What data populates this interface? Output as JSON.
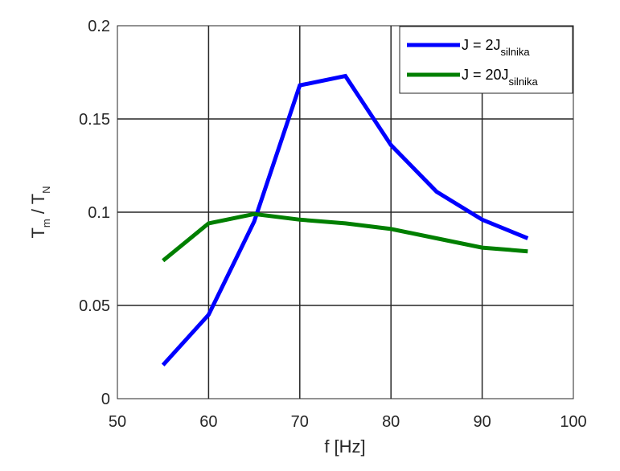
{
  "chart_data": {
    "type": "line",
    "xlabel": "f [Hz]",
    "ylabel": {
      "main": "T",
      "sub1": "m",
      "sep": " / T",
      "sub2": "N"
    },
    "xlim": [
      50,
      100
    ],
    "ylim": [
      0,
      0.2
    ],
    "xticks": [
      50,
      60,
      70,
      80,
      90,
      100
    ],
    "yticks": [
      0,
      0.05,
      0.1,
      0.15,
      0.2
    ],
    "xtick_labels": [
      "50",
      "60",
      "70",
      "80",
      "90",
      "100"
    ],
    "ytick_labels": [
      "0",
      "0.05",
      "0.1",
      "0.15",
      "0.2"
    ],
    "grid": true,
    "legend_position": "top-right",
    "series": [
      {
        "name": "J = 2J",
        "name_sub": "silnika",
        "color": "#0000ff",
        "x": [
          55,
          60,
          65,
          70,
          75,
          80,
          85,
          90,
          95
        ],
        "y": [
          0.018,
          0.045,
          0.095,
          0.168,
          0.173,
          0.136,
          0.111,
          0.096,
          0.086
        ]
      },
      {
        "name": "J = 20J",
        "name_sub": "silnika",
        "color": "#007f00",
        "x": [
          55,
          60,
          65,
          70,
          75,
          80,
          85,
          90,
          95
        ],
        "y": [
          0.074,
          0.094,
          0.099,
          0.096,
          0.094,
          0.091,
          0.086,
          0.081,
          0.079
        ]
      }
    ]
  }
}
